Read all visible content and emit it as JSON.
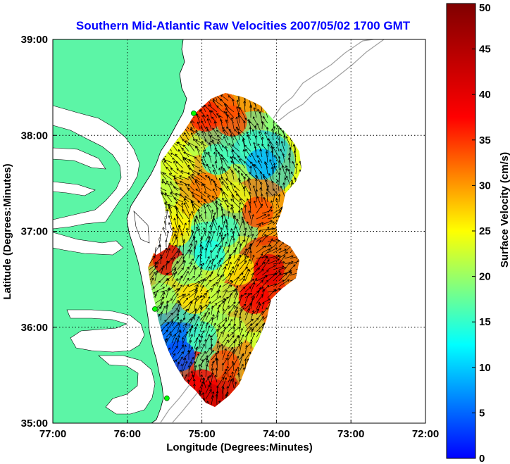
{
  "chart_data": {
    "type": "heatmap",
    "title": "Southern Mid-Atlantic Raw Velocities 2007/05/02 1700 GMT",
    "xlabel": "Longitude (Degrees:Minutes)",
    "ylabel": "Latitude (Degrees:Minutes)",
    "colorbar_label": "Surface Velocity (cm/s)",
    "xlim": [
      -77,
      -72
    ],
    "ylim": [
      35,
      39
    ],
    "x_ticks": [
      {
        "value": -77,
        "label": "77:00"
      },
      {
        "value": -76,
        "label": "76:00"
      },
      {
        "value": -75,
        "label": "75:00"
      },
      {
        "value": -74,
        "label": "74:00"
      },
      {
        "value": -73,
        "label": "73:00"
      },
      {
        "value": -72,
        "label": "72:00"
      }
    ],
    "y_ticks": [
      {
        "value": 39,
        "label": "39:00"
      },
      {
        "value": 38,
        "label": "38:00"
      },
      {
        "value": 37,
        "label": "37:00"
      },
      {
        "value": 36,
        "label": "36:00"
      },
      {
        "value": 35,
        "label": "35:00"
      }
    ],
    "colorbar": {
      "min": 0,
      "max": 50,
      "ticks": [
        {
          "value": 50,
          "label": "50"
        },
        {
          "value": 45,
          "label": "45"
        },
        {
          "value": 40,
          "label": "40"
        },
        {
          "value": 35,
          "label": "35"
        },
        {
          "value": 30,
          "label": "30"
        },
        {
          "value": 25,
          "label": "25"
        },
        {
          "value": 20,
          "label": "20"
        },
        {
          "value": 15,
          "label": "15"
        },
        {
          "value": 10,
          "label": "10"
        },
        {
          "value": 5,
          "label": "5"
        },
        {
          "value": 0,
          "label": "0"
        }
      ],
      "colormap": "jet"
    },
    "grid": "dotted",
    "land_color": "#5cf5a6",
    "stations": [
      {
        "lon": -75.11,
        "lat": 38.23
      },
      {
        "lon": -75.63,
        "lat": 36.19
      },
      {
        "lon": -75.47,
        "lat": 35.26
      }
    ],
    "velocity_samples": [
      {
        "lon": -74.95,
        "lat": 38.2,
        "speed": 42
      },
      {
        "lon": -74.6,
        "lat": 38.15,
        "speed": 40
      },
      {
        "lon": -74.3,
        "lat": 37.9,
        "speed": 22
      },
      {
        "lon": -74.2,
        "lat": 37.7,
        "speed": 15
      },
      {
        "lon": -74.8,
        "lat": 37.75,
        "speed": 22
      },
      {
        "lon": -75.3,
        "lat": 37.7,
        "speed": 30
      },
      {
        "lon": -75.5,
        "lat": 37.4,
        "speed": 28
      },
      {
        "lon": -74.95,
        "lat": 37.45,
        "speed": 38
      },
      {
        "lon": -74.55,
        "lat": 37.35,
        "speed": 30
      },
      {
        "lon": -74.25,
        "lat": 37.2,
        "speed": 40
      },
      {
        "lon": -75.35,
        "lat": 37.0,
        "speed": 32
      },
      {
        "lon": -74.7,
        "lat": 37.0,
        "speed": 22
      },
      {
        "lon": -75.45,
        "lat": 36.7,
        "speed": 45
      },
      {
        "lon": -75.2,
        "lat": 36.6,
        "speed": 26
      },
      {
        "lon": -74.9,
        "lat": 36.75,
        "speed": 20
      },
      {
        "lon": -74.5,
        "lat": 36.6,
        "speed": 32
      },
      {
        "lon": -74.1,
        "lat": 36.6,
        "speed": 45
      },
      {
        "lon": -75.55,
        "lat": 36.3,
        "speed": 26
      },
      {
        "lon": -75.1,
        "lat": 36.3,
        "speed": 33
      },
      {
        "lon": -74.7,
        "lat": 36.3,
        "speed": 28
      },
      {
        "lon": -74.3,
        "lat": 36.3,
        "speed": 44
      },
      {
        "lon": -75.4,
        "lat": 35.9,
        "speed": 12
      },
      {
        "lon": -75.0,
        "lat": 35.9,
        "speed": 22
      },
      {
        "lon": -74.6,
        "lat": 35.95,
        "speed": 28
      },
      {
        "lon": -75.3,
        "lat": 35.7,
        "speed": 10
      },
      {
        "lon": -74.9,
        "lat": 35.6,
        "speed": 24
      },
      {
        "lon": -74.7,
        "lat": 35.6,
        "speed": 40
      },
      {
        "lon": -75.0,
        "lat": 35.4,
        "speed": 44
      },
      {
        "lon": -74.9,
        "lat": 35.25,
        "speed": 46
      }
    ]
  }
}
